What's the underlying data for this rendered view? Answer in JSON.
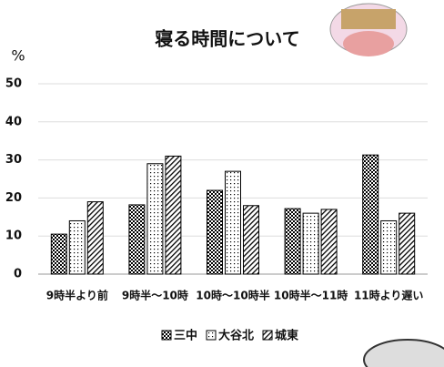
{
  "chart_data": {
    "type": "bar",
    "title": "寝る時間について",
    "y_label": "%",
    "categories": [
      "9時半より前",
      "9時半～10時",
      "10時～10時半",
      "10時半～11時",
      "11時より遅い"
    ],
    "series": [
      {
        "name": "三中",
        "color": "#000000",
        "pattern": "checker",
        "values": [
          10.5,
          18.2,
          22,
          17.2,
          31.3
        ]
      },
      {
        "name": "大谷北",
        "color": "#000000",
        "pattern": "dots",
        "values": [
          14,
          29,
          27,
          16,
          14
        ]
      },
      {
        "name": "城東",
        "color": "#000000",
        "pattern": "hatch",
        "values": [
          19,
          31,
          18,
          17,
          16
        ]
      }
    ],
    "ylim": [
      0,
      50
    ],
    "yticks": [
      0,
      10,
      20,
      30,
      40,
      50
    ],
    "grid": true,
    "legend": "bottom"
  }
}
